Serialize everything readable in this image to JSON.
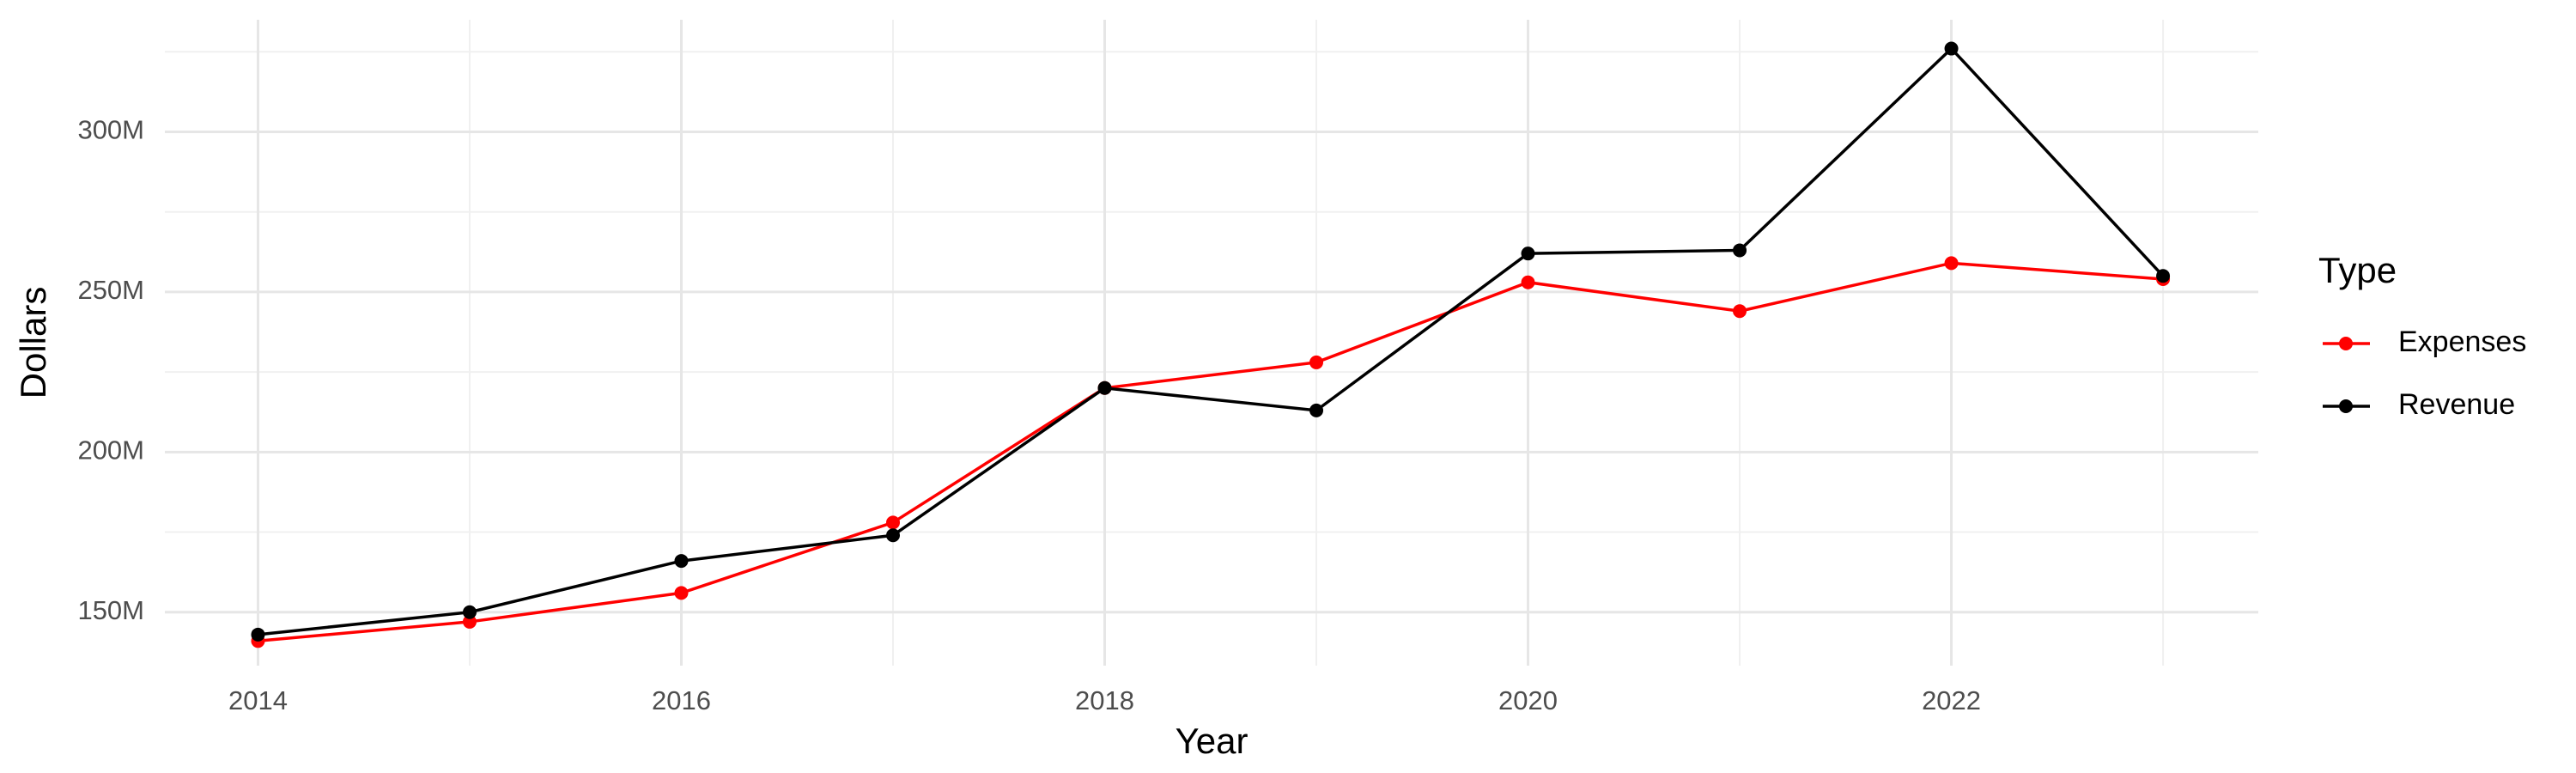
{
  "chart_data": {
    "type": "line",
    "x_label": "Year",
    "y_label": "Dollars",
    "legend_title": "Type",
    "x": [
      2014,
      2015,
      2016,
      2017,
      2018,
      2019,
      2020,
      2021,
      2022,
      2023
    ],
    "series": [
      {
        "name": "Expenses",
        "color": "#ff0000",
        "values": [
          141000000,
          147000000,
          156000000,
          178000000,
          220000000,
          228000000,
          253000000,
          244000000,
          259000000,
          254000000
        ]
      },
      {
        "name": "Revenue",
        "color": "#000000",
        "values": [
          143000000,
          150000000,
          166000000,
          174000000,
          220000000,
          213000000,
          262000000,
          263000000,
          326000000,
          255000000
        ]
      }
    ],
    "xlim": [
      2013.56,
      2023.45
    ],
    "xticks": [
      2014,
      2016,
      2018,
      2020,
      2022
    ],
    "ylim": [
      133300000,
      335000000
    ],
    "yticks": [
      {
        "value": 150000000,
        "label": "150M"
      },
      {
        "value": 200000000,
        "label": "200M"
      },
      {
        "value": 250000000,
        "label": "250M"
      },
      {
        "value": 300000000,
        "label": "300M"
      }
    ],
    "grid": true,
    "legend_position": "right"
  }
}
